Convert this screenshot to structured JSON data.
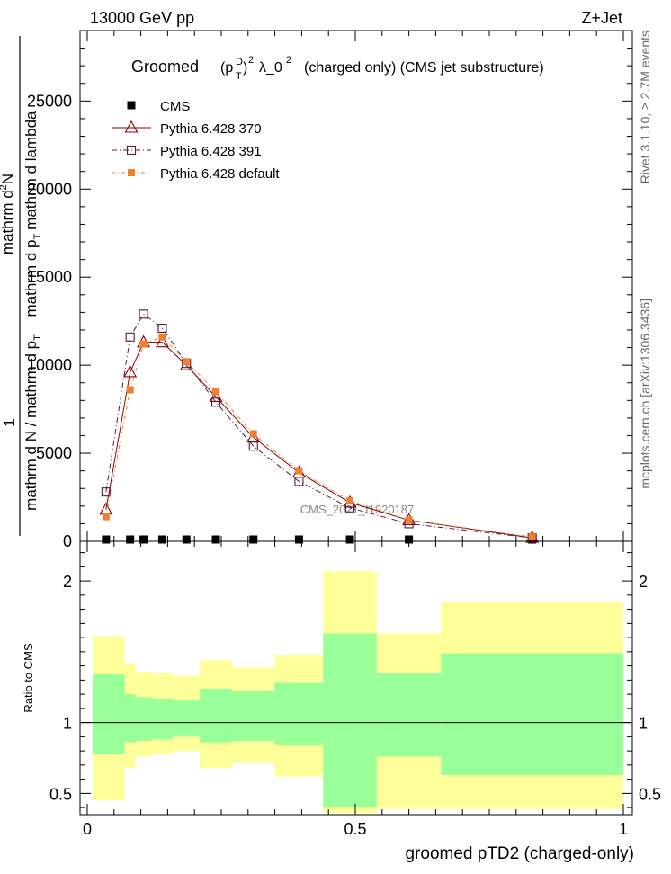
{
  "header": {
    "energy_label": "13000 GeV pp",
    "process_label": "Z+Jet"
  },
  "side_labels": {
    "rivet": "Rivet 3.1.10, ≥ 2.7M events",
    "mcplots": "mcplots.cern.ch [arXiv:1306.3436]"
  },
  "chart_data": [
    {
      "type": "line",
      "title_parts": {
        "lead": "Groomed",
        "p": "(p",
        "sub_T": "T",
        "sup_D": "D",
        "close": ")",
        "sup_2a": "2",
        "lambda": "λ_0",
        "sup_2b": "2",
        "tail": "(charged only) (CMS jet substructure)"
      },
      "ylabel_parts": {
        "num_a": "mathrm d",
        "num_sup": "2",
        "num_b": "N",
        "den_a": "mathrm d p",
        "den_sub": "T",
        "den_b": "mathrm d lambda",
        "pre": "1",
        "lower": "mathrm d N / mathrm d p",
        "lower_sub": "T"
      },
      "watermark": "CMS_2021_I1920187",
      "xlim": [
        0,
        1
      ],
      "ylim": [
        0,
        29000
      ],
      "yticks": [
        "0",
        "5000",
        "10000",
        "15000",
        "20000",
        "25000"
      ],
      "ytick_values": [
        0,
        5000,
        10000,
        15000,
        20000,
        25000
      ],
      "legend_position": "top-left",
      "series": [
        {
          "name": "CMS",
          "style": "data",
          "color": "#000000",
          "x": [
            0.035,
            0.08,
            0.105,
            0.14,
            0.185,
            0.24,
            0.31,
            0.395,
            0.49,
            0.6,
            0.83
          ],
          "y": [
            0,
            0,
            0,
            0,
            0,
            0,
            0,
            0,
            0,
            0,
            0
          ]
        },
        {
          "name": "Pythia 6.428 370",
          "style": "triangle",
          "color": "#8b0000",
          "x": [
            0.035,
            0.08,
            0.105,
            0.14,
            0.185,
            0.24,
            0.31,
            0.395,
            0.49,
            0.6,
            0.83
          ],
          "y": [
            1800,
            9600,
            11300,
            11300,
            10000,
            8200,
            5900,
            3900,
            2200,
            1200,
            200
          ]
        },
        {
          "name": "Pythia 6.428 391",
          "style": "square-open",
          "color": "#5a1a3a",
          "x": [
            0.035,
            0.08,
            0.105,
            0.14,
            0.185,
            0.24,
            0.31,
            0.395,
            0.49,
            0.6,
            0.83
          ],
          "y": [
            2800,
            11600,
            12900,
            12100,
            10100,
            7900,
            5400,
            3400,
            1900,
            1000,
            200
          ]
        },
        {
          "name": "Pythia 6.428 default",
          "style": "square-filled",
          "color": "#f08030",
          "x": [
            0.035,
            0.08,
            0.105,
            0.14,
            0.185,
            0.24,
            0.31,
            0.395,
            0.49,
            0.6,
            0.83
          ],
          "y": [
            1400,
            8600,
            11200,
            11600,
            10200,
            8500,
            6100,
            4000,
            2300,
            1200,
            250
          ]
        }
      ]
    },
    {
      "type": "area",
      "ylabel": "Ratio to CMS",
      "xlabel": "groomed pTD2 (charged-only)",
      "xlim": [
        0,
        1
      ],
      "ylim": [
        0.35,
        2.28
      ],
      "xticks": [
        "0",
        "0.5",
        "1"
      ],
      "xtick_values": [
        0,
        0.5,
        1
      ],
      "yticks": [
        "0.5",
        "1",
        "2"
      ],
      "ytick_values": [
        0.5,
        1,
        2
      ],
      "reference_line": 1,
      "band_colors": {
        "inner": "#99ff99",
        "outer": "#ffff99"
      },
      "bins": [
        {
          "x0": 0.01,
          "x1": 0.07,
          "inner": [
            0.78,
            1.34
          ],
          "outer": [
            0.45,
            1.61
          ]
        },
        {
          "x0": 0.07,
          "x1": 0.09,
          "inner": [
            0.86,
            1.2
          ],
          "outer": [
            0.68,
            1.42
          ]
        },
        {
          "x0": 0.09,
          "x1": 0.12,
          "inner": [
            0.87,
            1.18
          ],
          "outer": [
            0.76,
            1.36
          ]
        },
        {
          "x0": 0.12,
          "x1": 0.16,
          "inner": [
            0.88,
            1.17
          ],
          "outer": [
            0.78,
            1.35
          ]
        },
        {
          "x0": 0.16,
          "x1": 0.21,
          "inner": [
            0.9,
            1.16
          ],
          "outer": [
            0.8,
            1.33
          ]
        },
        {
          "x0": 0.21,
          "x1": 0.27,
          "inner": [
            0.86,
            1.24
          ],
          "outer": [
            0.68,
            1.44
          ]
        },
        {
          "x0": 0.27,
          "x1": 0.35,
          "inner": [
            0.87,
            1.22
          ],
          "outer": [
            0.72,
            1.39
          ]
        },
        {
          "x0": 0.35,
          "x1": 0.44,
          "inner": [
            0.84,
            1.28
          ],
          "outer": [
            0.62,
            1.48
          ]
        },
        {
          "x0": 0.44,
          "x1": 0.54,
          "inner": [
            0.4,
            1.63
          ],
          "outer": [
            0.36,
            2.07
          ]
        },
        {
          "x0": 0.54,
          "x1": 0.66,
          "inner": [
            0.76,
            1.35
          ],
          "outer": [
            0.39,
            1.63
          ]
        },
        {
          "x0": 0.66,
          "x1": 1.0,
          "inner": [
            0.63,
            1.49
          ],
          "outer": [
            0.39,
            1.85
          ]
        }
      ]
    }
  ]
}
